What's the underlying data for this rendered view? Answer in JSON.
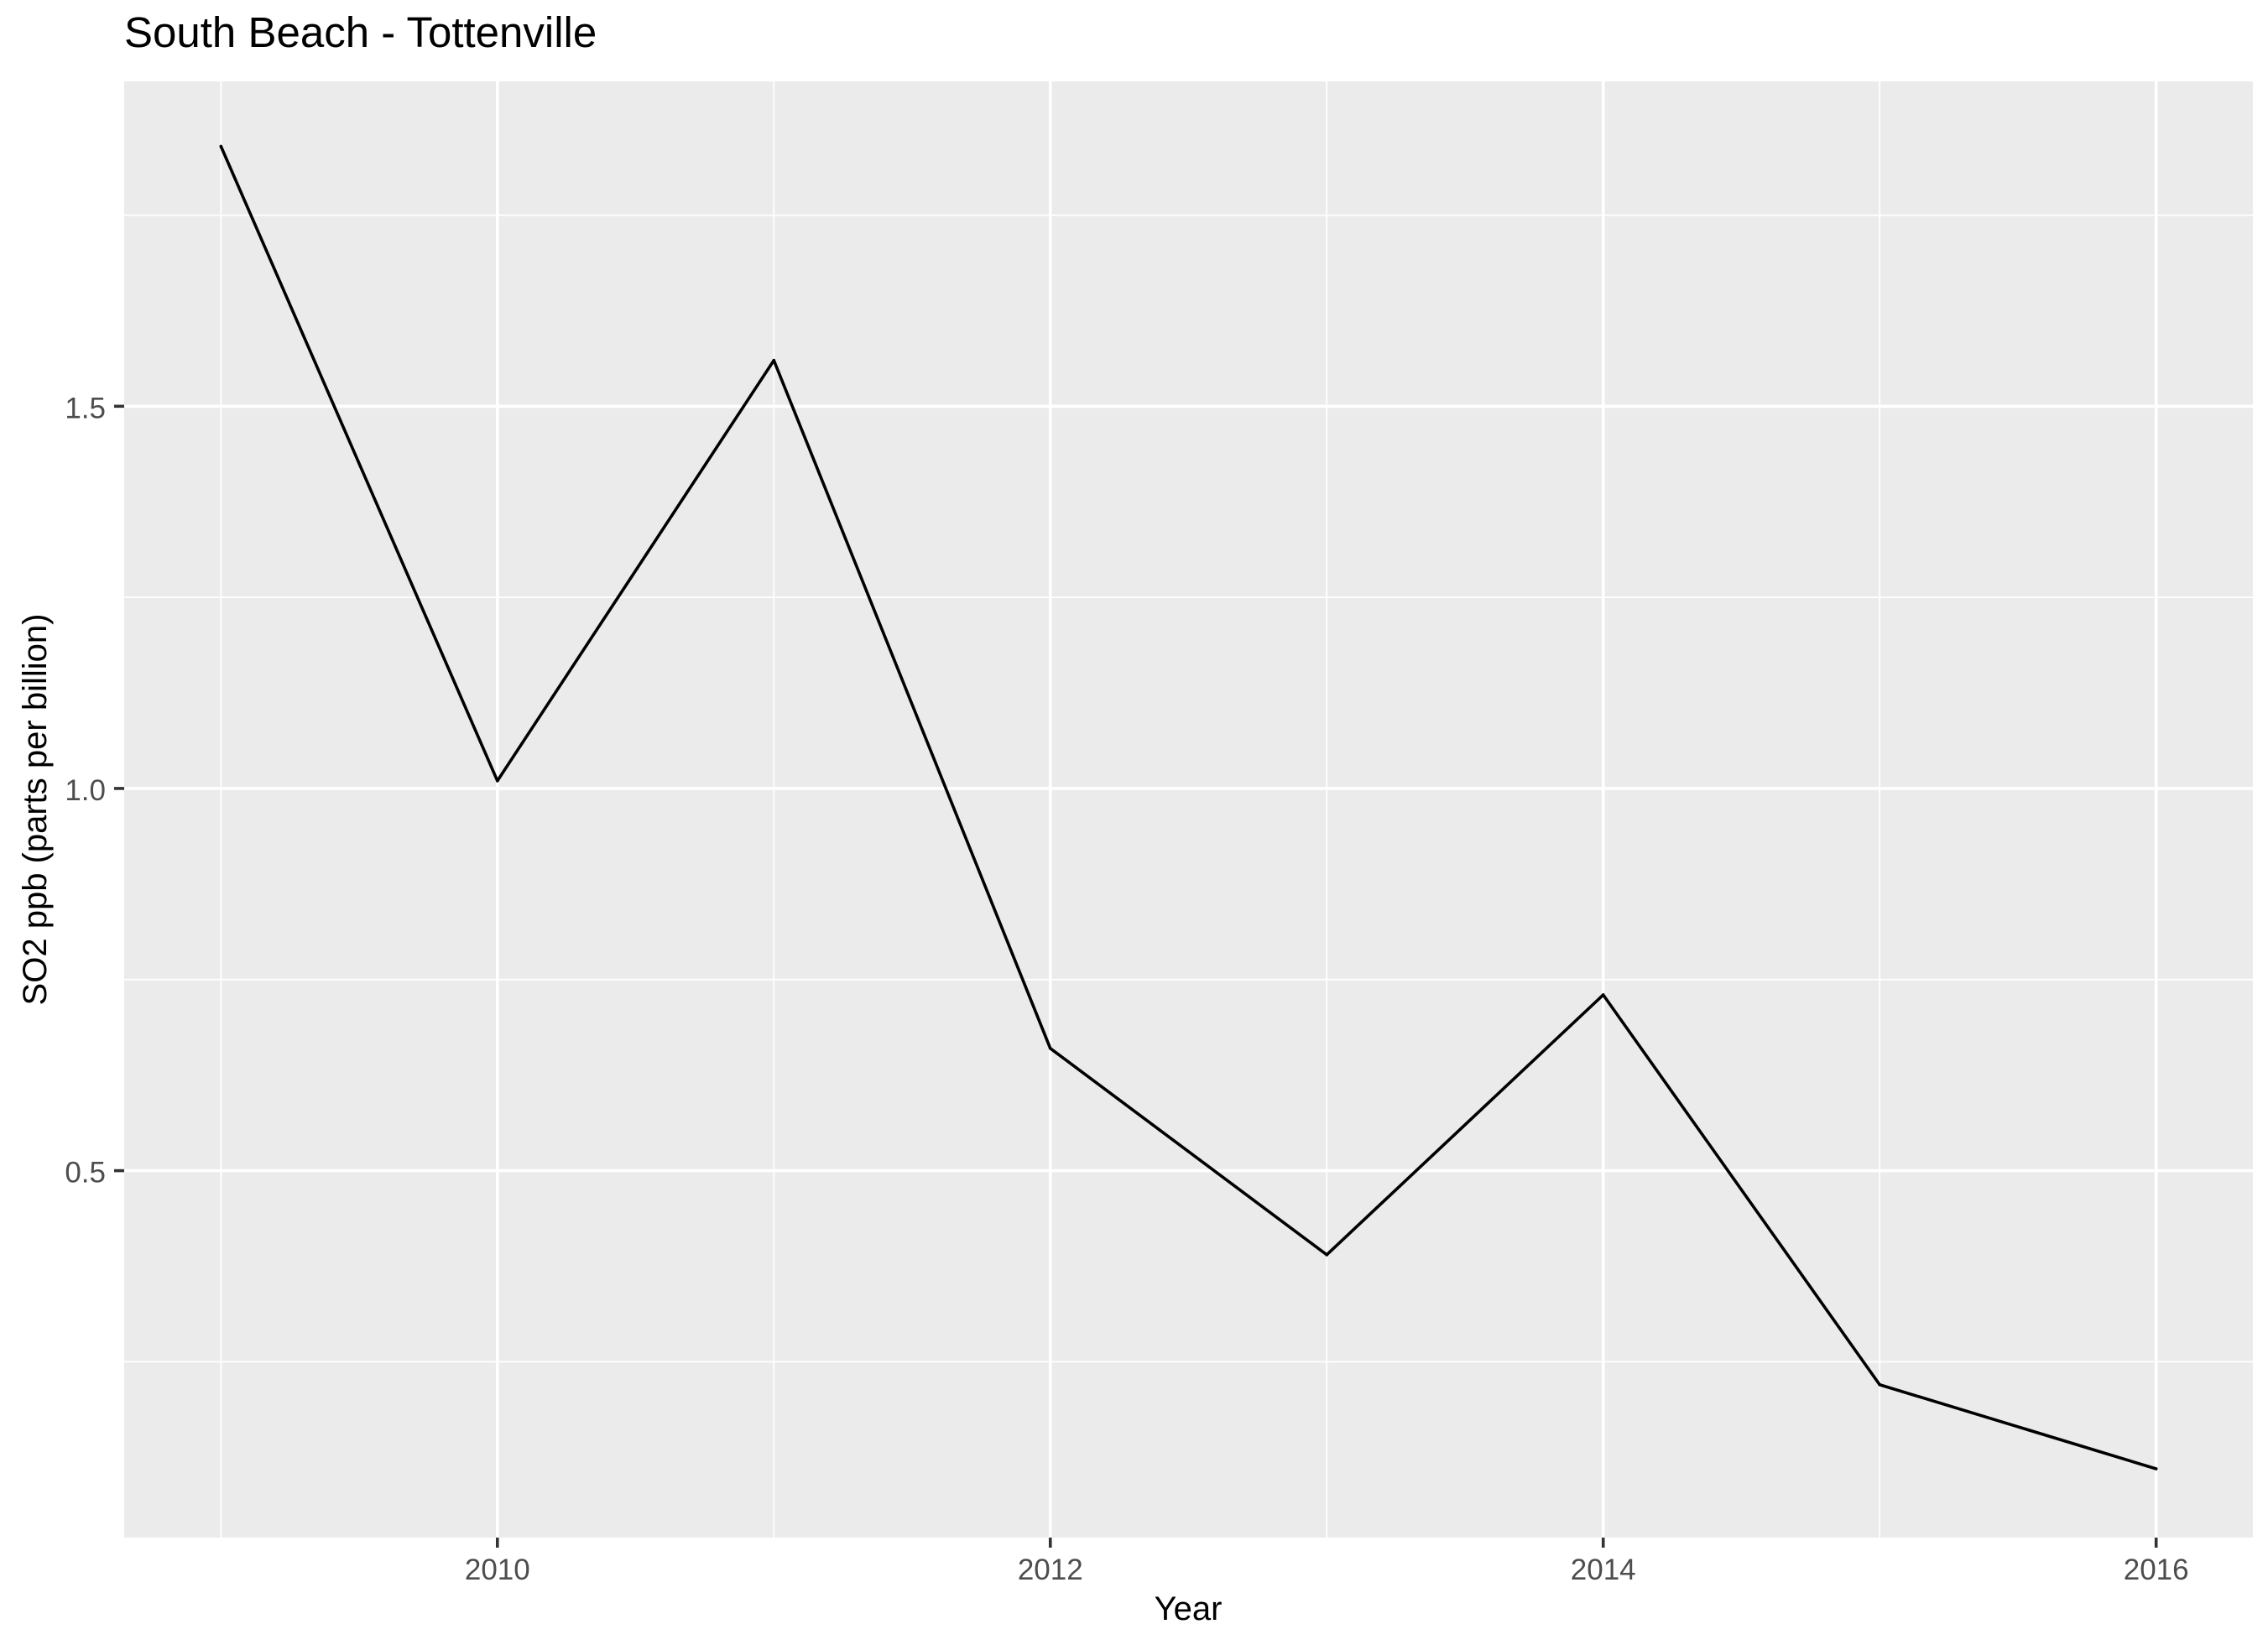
{
  "chart_data": {
    "type": "line",
    "title": "South Beach - Tottenville",
    "xlabel": "Year",
    "ylabel": "SO2 ppb (parts per billion)",
    "x": [
      2009,
      2010,
      2011,
      2012,
      2013,
      2014,
      2015,
      2016
    ],
    "y": [
      1.84,
      1.01,
      1.56,
      0.66,
      0.39,
      0.73,
      0.22,
      0.11
    ],
    "xlim": [
      2008.65,
      2016.35
    ],
    "ylim": [
      0.02,
      1.925
    ],
    "x_ticks": [
      2010,
      2012,
      2014,
      2016
    ],
    "x_tick_labels": [
      "2010",
      "2012",
      "2014",
      "2016"
    ],
    "x_minor_ticks": [
      2009,
      2011,
      2013,
      2015
    ],
    "y_ticks": [
      0.5,
      1.0,
      1.5
    ],
    "y_tick_labels": [
      "0.5",
      "1.0",
      "1.5"
    ],
    "y_minor_ticks": [
      0.25,
      0.75,
      1.25,
      1.75
    ],
    "grid": true,
    "line_color": "#000000",
    "panel_background": "#EBEBEB",
    "grid_color": "#FFFFFF",
    "tick_label_color": "#4D4D4D",
    "axis_tick_color": "#333333"
  }
}
